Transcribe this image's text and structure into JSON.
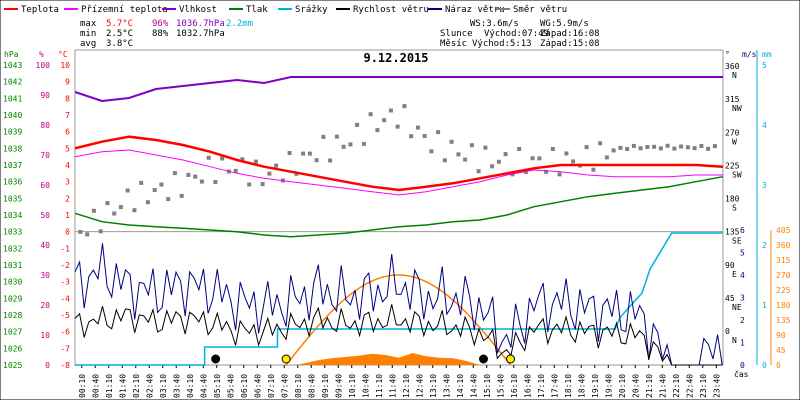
{
  "legend": [
    {
      "label": "Teplota",
      "color": "#ff0000"
    },
    {
      "label": "Přízemní teplota",
      "color": "#ff00ff"
    },
    {
      "label": "Vlhkost",
      "color": "#8000c0"
    },
    {
      "label": "Tlak",
      "color": "#008000"
    },
    {
      "label": "Srážky",
      "color": "#00b0e0"
    },
    {
      "label": "Rychlost větru",
      "color": "#000000"
    },
    {
      "label": "Náraz větru",
      "color": "#000080"
    },
    {
      "label": "Směr větru",
      "color": "#808080"
    }
  ],
  "stats": {
    "max": {
      "label": "max",
      "temp": "5.7°C",
      "hum": "96%",
      "press": "1036.7hPa",
      "rain": "2.2mm"
    },
    "min": {
      "label": "min",
      "temp": "2.5°C",
      "hum": "88%",
      "press": "1032.7hPa"
    },
    "avg": {
      "label": "avg",
      "temp": "3.8°C"
    }
  },
  "info": {
    "ws": "WS:3.6m/s",
    "wg": "WG:5.9m/s",
    "sun_label": "Slunce",
    "sun_rise": "Východ:07:49",
    "sun_set": "Západ:16:08",
    "moon_label": "Měsíc",
    "moon_rise": "Východ:5:13",
    "moon_set": "Západ:15:08"
  },
  "date": "9.12.2015",
  "unit_labels": {
    "hpa": "hPa",
    "pct": "%",
    "degc": "°C",
    "deg": "°",
    "ms": "m/s",
    "mm": "mm",
    "cas": "čas"
  },
  "colors": {
    "temp": "#ff0000",
    "ground": "#ff00ff",
    "hum": "#8000c0",
    "press": "#008000",
    "rain": "#00b0e0",
    "wind": "#000000",
    "gust": "#000080",
    "dir": "#808080",
    "solar": "#ff8000",
    "pct_axis": "#c00080",
    "hum_axis": "#008000",
    "rain_axis": "#00b0e0"
  },
  "chart_data": {
    "type": "line",
    "title": "9.12.2015",
    "x_labels": [
      "00:10",
      "00:40",
      "01:10",
      "01:40",
      "02:10",
      "02:40",
      "03:10",
      "03:40",
      "04:10",
      "04:40",
      "05:10",
      "05:40",
      "06:10",
      "06:40",
      "07:10",
      "07:40",
      "08:10",
      "08:40",
      "09:10",
      "09:40",
      "10:10",
      "10:40",
      "11:10",
      "11:40",
      "12:10",
      "12:40",
      "13:10",
      "13:40",
      "14:10",
      "14:40",
      "15:10",
      "15:40",
      "16:10",
      "16:40",
      "17:10",
      "17:40",
      "18:10",
      "18:40",
      "19:10",
      "19:40",
      "20:10",
      "20:40",
      "21:10",
      "21:40",
      "22:10",
      "22:40",
      "23:10",
      "23:40"
    ],
    "axes": {
      "pressure_hpa": {
        "ticks": [
          1025,
          1026,
          1027,
          1028,
          1029,
          1030,
          1031,
          1032,
          1033,
          1034,
          1035,
          1036,
          1037,
          1038,
          1039,
          1040,
          1041,
          1042,
          1043
        ],
        "range": [
          1025,
          1043
        ]
      },
      "humidity_pct": {
        "ticks": [
          0,
          10,
          20,
          30,
          40,
          50,
          60,
          70,
          80,
          90,
          100
        ],
        "range": [
          0,
          100
        ]
      },
      "temperature_c": {
        "ticks": [
          -8,
          -7,
          -6,
          -5,
          -4,
          -3,
          -2,
          -1,
          0,
          1,
          2,
          3,
          4,
          5,
          6,
          7,
          8,
          9,
          10
        ],
        "range": [
          -8,
          10
        ]
      },
      "wind_dir_deg": {
        "ticks": [
          0,
          45,
          90,
          135,
          180,
          225,
          270,
          315,
          360
        ],
        "labels": [
          "N",
          "NE",
          "E",
          "SE",
          "S",
          "SW",
          "W",
          "NW",
          "N"
        ]
      },
      "wind_speed_ms": {
        "ticks": [
          0,
          1,
          2,
          3,
          4,
          5,
          6
        ],
        "range": [
          0,
          6
        ]
      },
      "rain_mm": {
        "ticks": [
          0,
          1,
          2,
          3,
          4,
          5
        ],
        "range": [
          0,
          5
        ]
      },
      "solar": {
        "ticks": [
          0,
          45,
          90,
          135,
          180,
          225,
          270,
          315,
          360,
          405
        ],
        "range": [
          0,
          405
        ]
      }
    },
    "series": [
      {
        "name": "Teplota",
        "unit": "°C",
        "x": [
          0,
          1,
          2,
          3,
          4,
          5,
          6,
          7,
          8,
          9,
          10,
          11,
          12,
          13,
          14,
          15,
          16,
          17,
          18,
          19,
          20,
          21,
          22,
          23,
          24
        ],
        "values": [
          5.0,
          5.4,
          5.7,
          5.5,
          5.2,
          4.8,
          4.3,
          3.9,
          3.6,
          3.3,
          3.0,
          2.7,
          2.5,
          2.7,
          2.9,
          3.2,
          3.5,
          3.8,
          4.0,
          4.0,
          4.0,
          4.0,
          4.0,
          4.0,
          3.9
        ]
      },
      {
        "name": "Přízemní teplota",
        "unit": "°C",
        "x": [
          0,
          1,
          2,
          3,
          4,
          5,
          6,
          7,
          8,
          9,
          10,
          11,
          12,
          13,
          14,
          15,
          16,
          17,
          18,
          19,
          20,
          21,
          22,
          23,
          24
        ],
        "values": [
          4.5,
          4.8,
          4.9,
          4.6,
          4.3,
          3.9,
          3.5,
          3.2,
          3.0,
          2.8,
          2.6,
          2.4,
          2.2,
          2.4,
          2.7,
          3.0,
          3.4,
          3.7,
          3.6,
          3.4,
          3.3,
          3.3,
          3.3,
          3.4,
          3.4
        ]
      },
      {
        "name": "Vlhkost",
        "unit": "%",
        "x": [
          0,
          1,
          2,
          3,
          4,
          5,
          6,
          7,
          8,
          9,
          10,
          11,
          12,
          13,
          14,
          15,
          16,
          17,
          18,
          19,
          20,
          21,
          22,
          23,
          24
        ],
        "values": [
          91,
          88,
          89,
          92,
          93,
          94,
          95,
          94,
          96,
          96,
          96,
          96,
          96,
          96,
          96,
          96,
          96,
          96,
          96,
          96,
          96,
          96,
          96,
          96,
          96
        ]
      },
      {
        "name": "Tlak",
        "unit": "hPa",
        "x": [
          0,
          1,
          2,
          3,
          4,
          5,
          6,
          7,
          8,
          9,
          10,
          11,
          12,
          13,
          14,
          15,
          16,
          17,
          18,
          19,
          20,
          21,
          22,
          23,
          24
        ],
        "values": [
          1034.1,
          1033.6,
          1033.4,
          1033.3,
          1033.2,
          1033.1,
          1033.0,
          1032.8,
          1032.7,
          1032.8,
          1032.9,
          1033.1,
          1033.3,
          1033.4,
          1033.6,
          1033.7,
          1034.0,
          1034.5,
          1034.8,
          1035.1,
          1035.3,
          1035.5,
          1035.7,
          1036.0,
          1036.3
        ]
      },
      {
        "name": "Srážky",
        "unit": "mm",
        "x": [
          0,
          4.8,
          4.8,
          7.5,
          7.5,
          16.0,
          16.0,
          20.0,
          20.2,
          21.0,
          21.3,
          22.1,
          24
        ],
        "values": [
          0,
          0,
          0.3,
          0.3,
          0.6,
          0.6,
          0.6,
          0.6,
          0.8,
          1.2,
          1.6,
          2.2,
          2.2
        ]
      },
      {
        "name": "Rychlost větru",
        "unit": "m/s",
        "x": [
          0,
          1,
          2,
          3,
          4,
          5,
          6,
          7,
          8,
          9,
          10,
          11,
          12,
          13,
          14,
          15,
          16,
          17,
          18,
          19,
          20,
          21,
          22,
          23,
          24
        ],
        "values": [
          1.8,
          2.0,
          2.2,
          1.9,
          2.1,
          1.9,
          1.5,
          1.5,
          1.7,
          2.0,
          1.8,
          1.9,
          2.0,
          1.8,
          1.7,
          1.4,
          0.5,
          1.6,
          1.6,
          1.5,
          1.4,
          1.3,
          0.0,
          0.0,
          0.0
        ]
      },
      {
        "name": "Náraz větru",
        "unit": "m/s",
        "x": [
          0,
          1,
          2,
          3,
          4,
          5,
          6,
          7,
          8,
          9,
          10,
          11,
          12,
          13,
          14,
          15,
          16,
          17,
          18,
          19,
          20,
          21,
          22,
          23,
          24
        ],
        "values": [
          3.6,
          4.2,
          3.5,
          3.2,
          3.6,
          3.4,
          2.8,
          2.6,
          2.8,
          3.4,
          3.0,
          3.2,
          3.6,
          3.0,
          3.0,
          2.6,
          1.0,
          2.7,
          2.8,
          2.5,
          2.4,
          2.2,
          0.0,
          0.0,
          1.0
        ]
      },
      {
        "name": "Směr větru",
        "unit": "°",
        "x": [
          0.2,
          1,
          2,
          3,
          4,
          5,
          6,
          7,
          8,
          9,
          10,
          11,
          12,
          13,
          14,
          15,
          16,
          17,
          18,
          19,
          19.8,
          20.5,
          22,
          23,
          23.8
        ],
        "values": [
          140,
          160,
          185,
          195,
          205,
          225,
          228,
          215,
          230,
          250,
          260,
          285,
          300,
          265,
          250,
          240,
          235,
          235,
          235,
          240,
          250,
          255,
          255,
          255,
          255
        ]
      }
    ]
  }
}
